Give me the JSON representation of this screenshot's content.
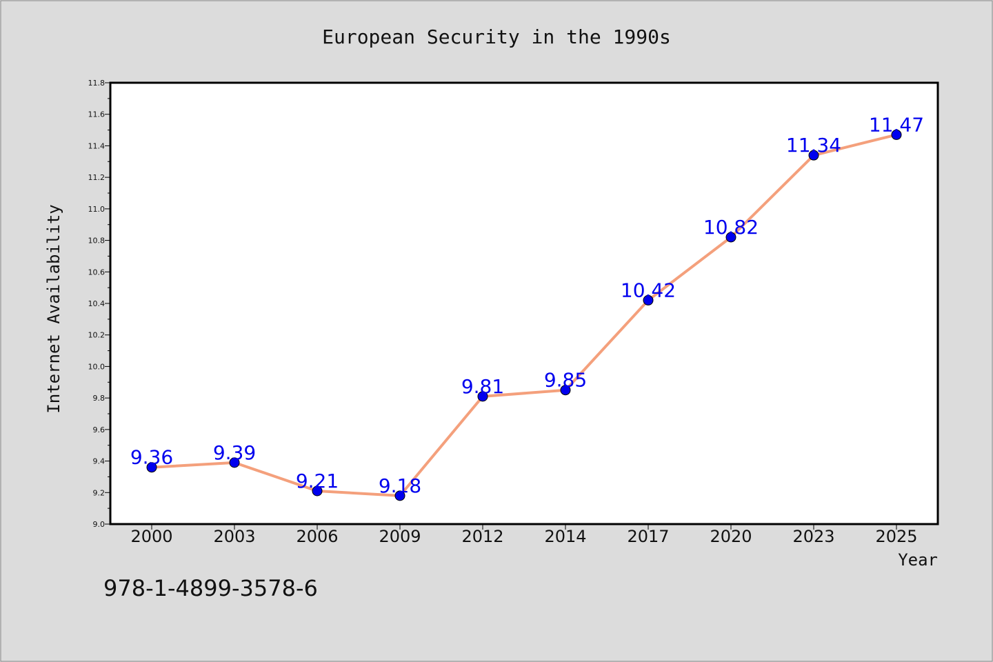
{
  "chart_data": {
    "type": "line",
    "title": "European Security in the 1990s",
    "xlabel": "Year",
    "ylabel": "Internet Availability",
    "categories": [
      "2000",
      "2003",
      "2006",
      "2009",
      "2012",
      "2014",
      "2017",
      "2020",
      "2023",
      "2025"
    ],
    "values": [
      9.36,
      9.39,
      9.21,
      9.18,
      9.81,
      9.85,
      10.42,
      10.82,
      11.34,
      11.47
    ],
    "data_labels": [
      "9.36",
      "9.39",
      "9.21",
      "9.18",
      "9.81",
      "9.85",
      "10.42",
      "10.82",
      "11.34",
      "11.47"
    ],
    "ylim": [
      9.0,
      11.8
    ],
    "yticks": [
      "9.0",
      "9.2",
      "9.4",
      "9.6",
      "9.8",
      "10.0",
      "10.2",
      "10.4",
      "10.6",
      "10.8",
      "11.0",
      "11.2",
      "11.4",
      "11.6",
      "11.8"
    ],
    "grid": false,
    "line_color": "#f4a07c",
    "marker_color": "#0000ee",
    "label_color": "#0000ee"
  },
  "annotation": "978-1-4899-3578-6"
}
